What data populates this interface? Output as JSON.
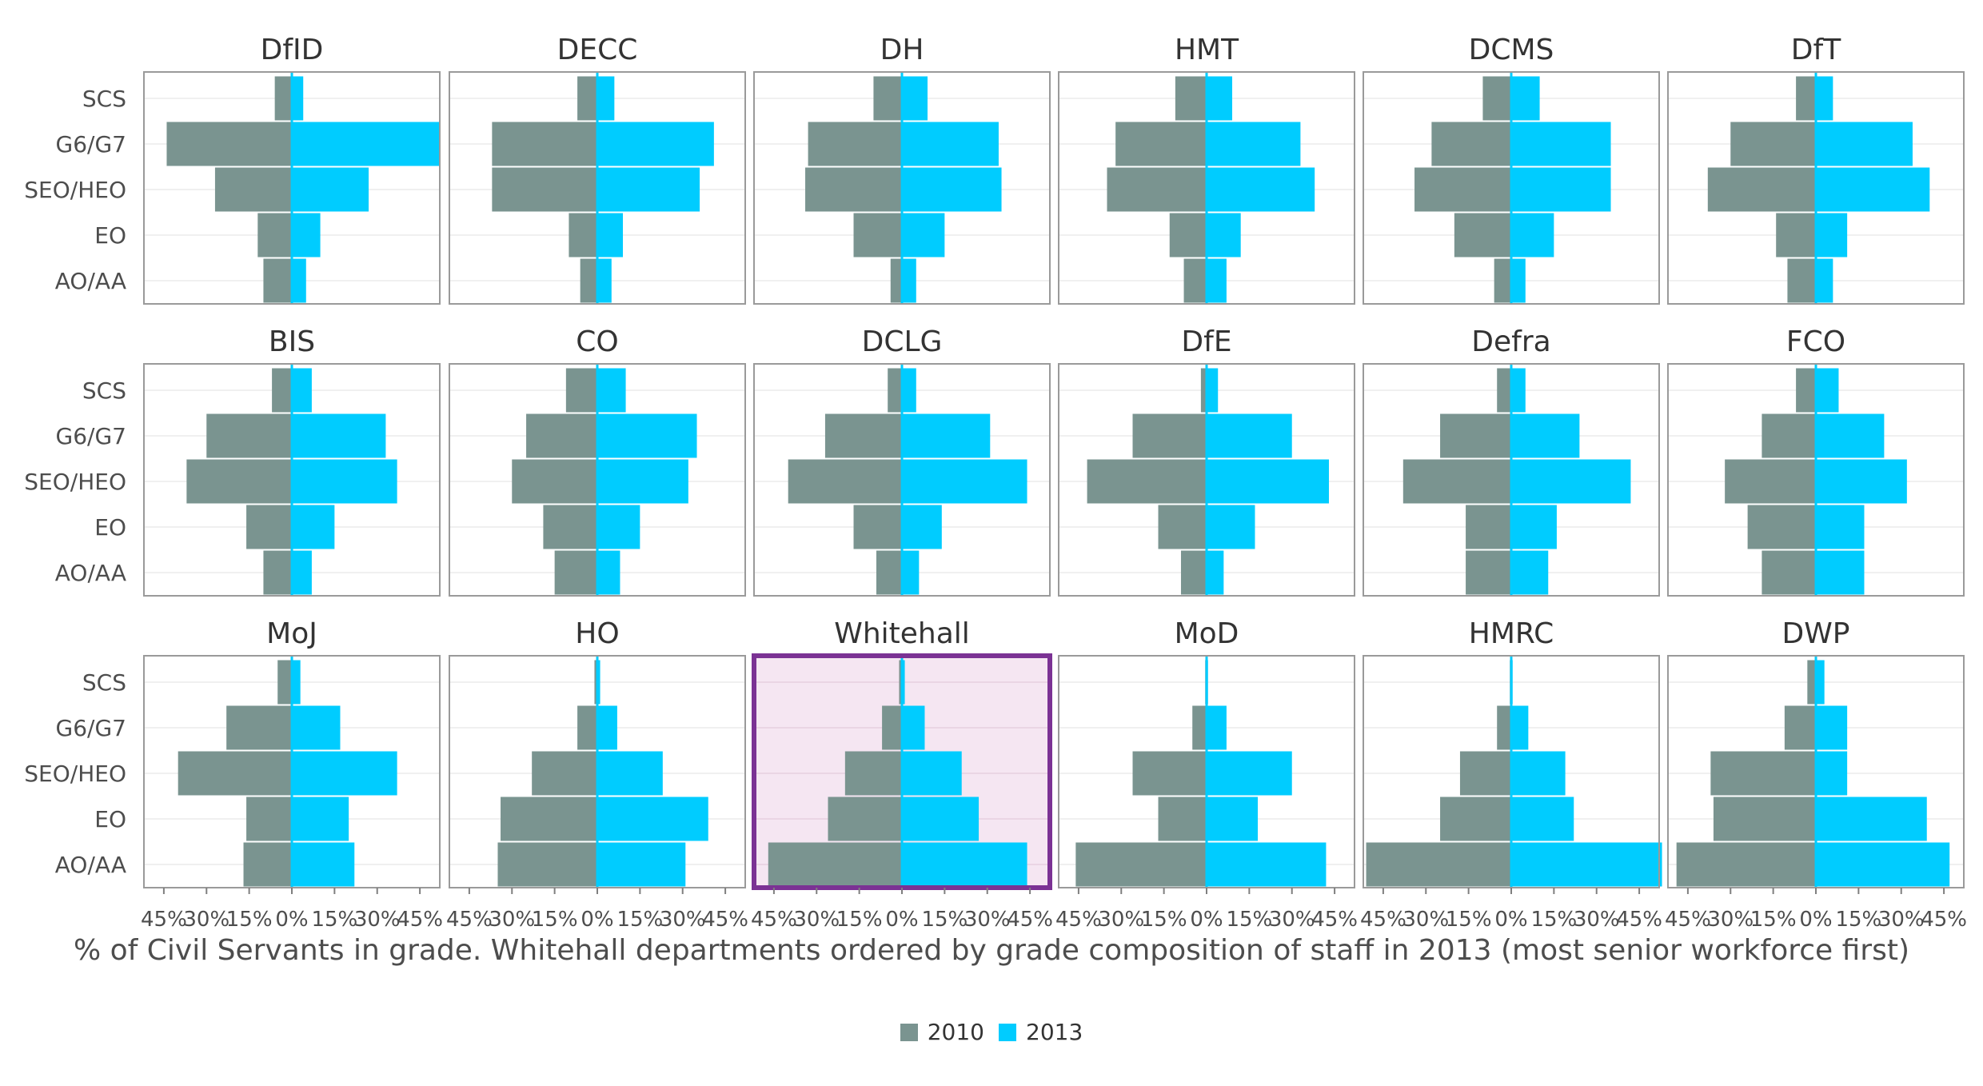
{
  "chart_data": {
    "type": "bar",
    "grades": [
      "SCS",
      "G6/G7",
      "SEO/HEO",
      "EO",
      "AO/AA"
    ],
    "x_tick_labels": [
      "45%",
      "30%",
      "15%",
      "0%",
      "15%",
      "30%",
      "45%"
    ],
    "xlim": [
      -52,
      52
    ],
    "x_unit": "% of Civil Servants in grade",
    "xlabel": "% of Civil Servants in grade. Whitehall departments ordered by grade composition of staff in 2013 (most senior workforce first)",
    "legend": {
      "position": "bottom",
      "items": [
        {
          "name": "2010",
          "color": "#7a9490"
        },
        {
          "name": "2013",
          "color": "#00ccff"
        }
      ]
    },
    "highlight": {
      "panel": "Whitehall",
      "border_color": "#7b3294",
      "fill_color": "#f5e6f2"
    },
    "panels": [
      {
        "title": "DfID",
        "series": [
          {
            "name": "2010",
            "values": [
              6,
              44,
              27,
              12,
              10
            ]
          },
          {
            "name": "2013",
            "values": [
              4,
              52,
              27,
              10,
              5
            ]
          }
        ]
      },
      {
        "title": "DECC",
        "series": [
          {
            "name": "2010",
            "values": [
              7,
              37,
              37,
              10,
              6
            ]
          },
          {
            "name": "2013",
            "values": [
              6,
              41,
              36,
              9,
              5
            ]
          }
        ]
      },
      {
        "title": "DH",
        "series": [
          {
            "name": "2010",
            "values": [
              10,
              33,
              34,
              17,
              4
            ]
          },
          {
            "name": "2013",
            "values": [
              9,
              34,
              35,
              15,
              5
            ]
          }
        ]
      },
      {
        "title": "HMT",
        "series": [
          {
            "name": "2010",
            "values": [
              11,
              32,
              35,
              13,
              8
            ]
          },
          {
            "name": "2013",
            "values": [
              9,
              33,
              38,
              12,
              7
            ]
          }
        ]
      },
      {
        "title": "DCMS",
        "series": [
          {
            "name": "2010",
            "values": [
              10,
              28,
              34,
              20,
              6
            ]
          },
          {
            "name": "2013",
            "values": [
              10,
              35,
              35,
              15,
              5
            ]
          }
        ]
      },
      {
        "title": "DfT",
        "series": [
          {
            "name": "2010",
            "values": [
              7,
              30,
              38,
              14,
              10
            ]
          },
          {
            "name": "2013",
            "values": [
              6,
              34,
              40,
              11,
              6
            ]
          }
        ]
      },
      {
        "title": "BIS",
        "series": [
          {
            "name": "2010",
            "values": [
              7,
              30,
              37,
              16,
              10
            ]
          },
          {
            "name": "2013",
            "values": [
              7,
              33,
              37,
              15,
              7
            ]
          }
        ]
      },
      {
        "title": "CO",
        "series": [
          {
            "name": "2010",
            "values": [
              11,
              25,
              30,
              19,
              15
            ]
          },
          {
            "name": "2013",
            "values": [
              10,
              35,
              32,
              15,
              8
            ]
          }
        ]
      },
      {
        "title": "DCLG",
        "series": [
          {
            "name": "2010",
            "values": [
              5,
              27,
              40,
              17,
              9
            ]
          },
          {
            "name": "2013",
            "values": [
              5,
              31,
              44,
              14,
              6
            ]
          }
        ]
      },
      {
        "title": "DfE",
        "series": [
          {
            "name": "2010",
            "values": [
              2,
              26,
              42,
              17,
              9
            ]
          },
          {
            "name": "2013",
            "values": [
              4,
              30,
              43,
              17,
              6
            ]
          }
        ]
      },
      {
        "title": "Defra",
        "series": [
          {
            "name": "2010",
            "values": [
              5,
              25,
              38,
              16,
              16
            ]
          },
          {
            "name": "2013",
            "values": [
              5,
              24,
              42,
              16,
              13
            ]
          }
        ]
      },
      {
        "title": "FCO",
        "series": [
          {
            "name": "2010",
            "values": [
              7,
              19,
              32,
              24,
              19
            ]
          },
          {
            "name": "2013",
            "values": [
              8,
              24,
              32,
              17,
              17
            ]
          }
        ]
      },
      {
        "title": "MoJ",
        "series": [
          {
            "name": "2010",
            "values": [
              5,
              23,
              40,
              16,
              17
            ]
          },
          {
            "name": "2013",
            "values": [
              3,
              17,
              37,
              20,
              22
            ]
          }
        ]
      },
      {
        "title": "HO",
        "series": [
          {
            "name": "2010",
            "values": [
              1,
              7,
              23,
              34,
              35
            ]
          },
          {
            "name": "2013",
            "values": [
              1,
              7,
              23,
              39,
              31
            ]
          }
        ]
      },
      {
        "title": "Whitehall",
        "series": [
          {
            "name": "2010",
            "values": [
              1,
              7,
              20,
              26,
              47
            ]
          },
          {
            "name": "2013",
            "values": [
              1,
              8,
              21,
              27,
              44
            ]
          }
        ]
      },
      {
        "title": "MoD",
        "series": [
          {
            "name": "2010",
            "values": [
              0.5,
              5,
              26,
              17,
              46
            ]
          },
          {
            "name": "2013",
            "values": [
              0.5,
              7,
              30,
              18,
              42
            ]
          }
        ]
      },
      {
        "title": "HMRC",
        "series": [
          {
            "name": "2010",
            "values": [
              0.5,
              5,
              18,
              25,
              51
            ]
          },
          {
            "name": "2013",
            "values": [
              0.5,
              6,
              19,
              22,
              53
            ]
          }
        ]
      },
      {
        "title": "DWP",
        "series": [
          {
            "name": "2010",
            "values": [
              3,
              11,
              37,
              36,
              49
            ]
          },
          {
            "name": "2013",
            "values": [
              3,
              11,
              11,
              39,
              47
            ]
          }
        ]
      }
    ]
  }
}
